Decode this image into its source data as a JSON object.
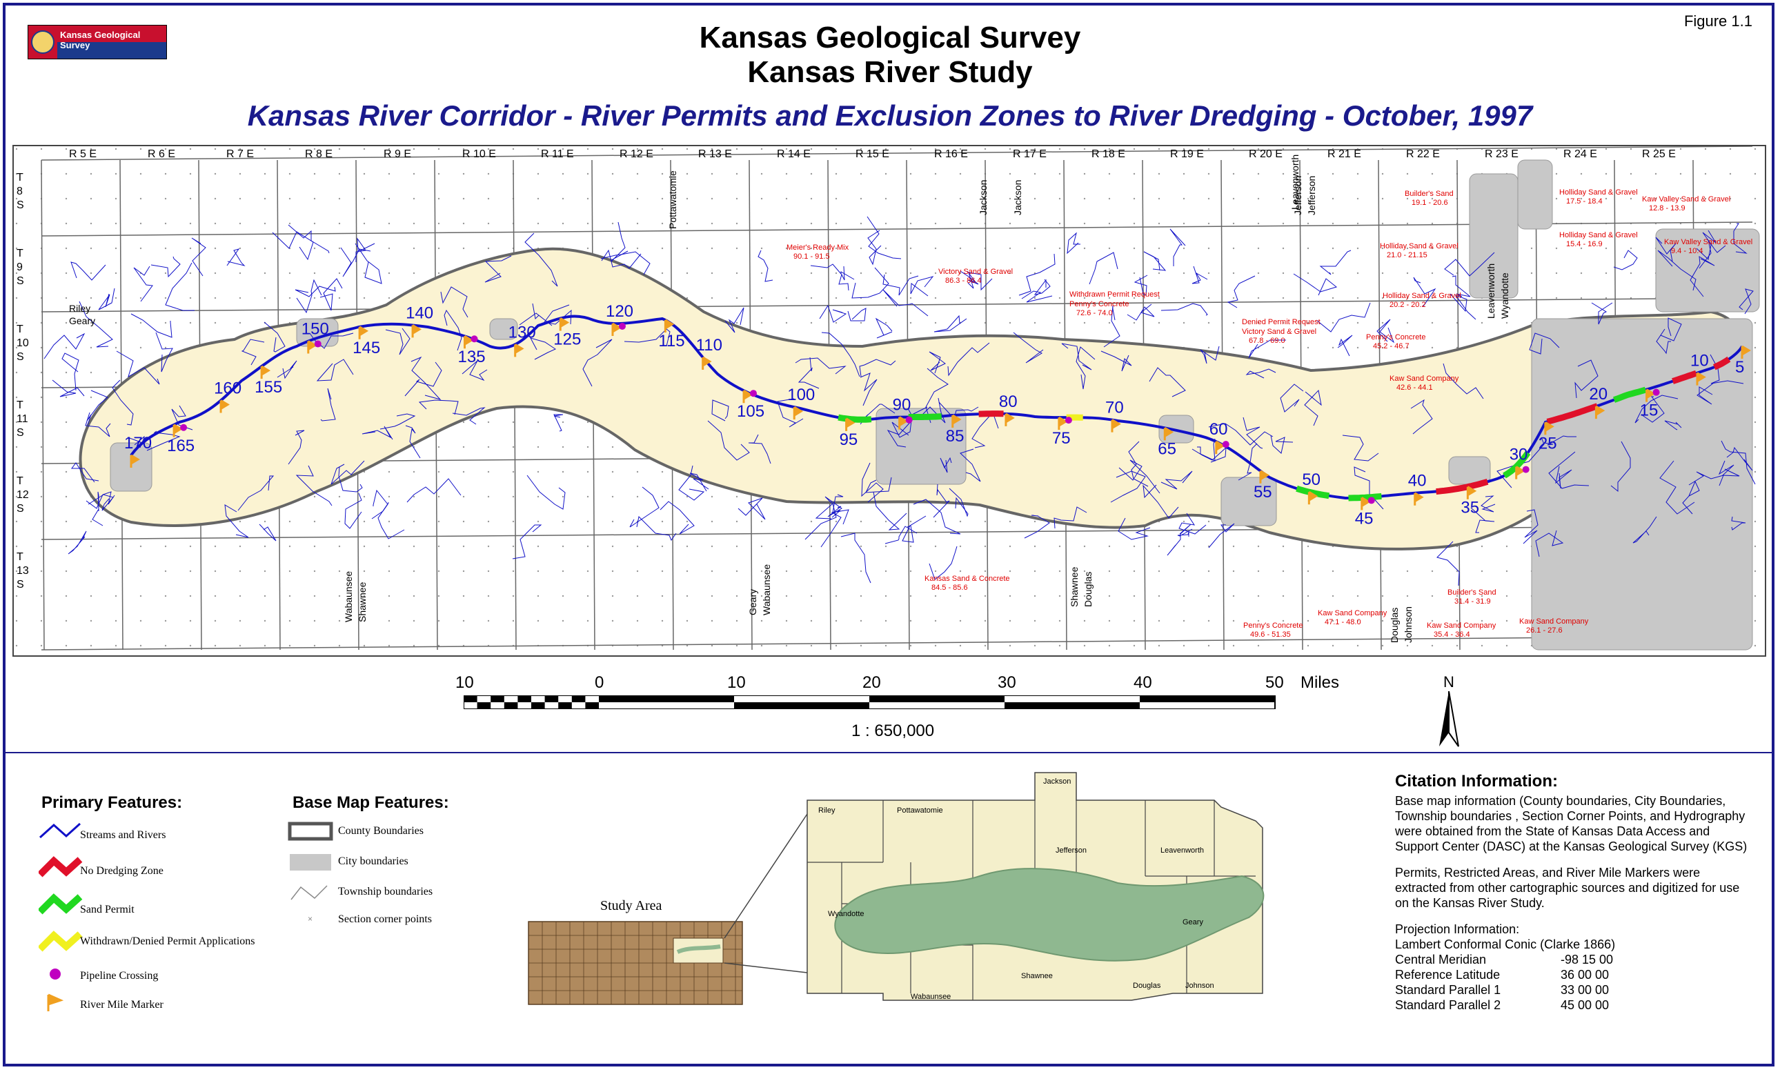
{
  "header": {
    "logo_text": "Kansas Geological Survey",
    "figure_label": "Figure  1.1",
    "title_line1": "Kansas Geological Survey",
    "title_line2": "Kansas River Study",
    "subtitle": "Kansas River Corridor - River Permits and Exclusion Zones to River Dredging - October, 1997"
  },
  "colors": {
    "frame": "#1a1a8c",
    "river": "#1010c8",
    "corridor_fill": "#fbf3d2",
    "city": "#c8c8c8",
    "no_dredge": "#e0102a",
    "sand_permit": "#20d820",
    "withdrawn": "#f0f020",
    "pipeline": "#c000c0",
    "marker": "#f0a020",
    "label_red": "#e00000",
    "study_area": "#8fb890",
    "kansas_fill": "#b08a5e"
  },
  "map": {
    "ranges": [
      "R 5 E",
      "R 6 E",
      "R 7 E",
      "R 8 E",
      "R 9 E",
      "R 10 E",
      "R 11 E",
      "R 12 E",
      "R 13 E",
      "R 14 E",
      "R 15 E",
      "R 16 E",
      "R 17 E",
      "R 18 E",
      "R 19 E",
      "R 20 E",
      "R 21 E",
      "R 22 E",
      "R 23 E",
      "R 24 E",
      "R 25 E"
    ],
    "townships": [
      [
        "T",
        "8",
        "S"
      ],
      [
        "T",
        "9",
        "S"
      ],
      [
        "T",
        "10",
        "S"
      ],
      [
        "T",
        "11",
        "S"
      ],
      [
        "T",
        "12",
        "S"
      ],
      [
        "T",
        "13",
        "S"
      ]
    ],
    "river_miles": [
      "170",
      "165",
      "160",
      "155",
      "150",
      "145",
      "140",
      "135",
      "130",
      "125",
      "120",
      "115",
      "110",
      "105",
      "100",
      "95",
      "90",
      "85",
      "80",
      "75",
      "70",
      "65",
      "60",
      "55",
      "50",
      "45",
      "40",
      "35",
      "30",
      "25",
      "20",
      "15",
      "10",
      "5"
    ],
    "county_labels": [
      "Riley",
      "Geary",
      "Pottawatomie",
      "Jackson",
      "Jackson",
      "Jefferson",
      "Jefferson",
      "Leavenworth",
      "Wabaunsee",
      "Shawnee",
      "Geary",
      "Wabaunsee",
      "Shawnee",
      "Douglas",
      "Douglas",
      "Johnson",
      "Leavenworth",
      "Wyandotte"
    ],
    "permits": [
      {
        "name": "Meier's Ready Mix",
        "range": "90.1 - 91.5"
      },
      {
        "name": "Victory Sand & Gravel",
        "range": "86.3 - 86.4"
      },
      {
        "name": "Withdrawn Permit Request",
        "range": ""
      },
      {
        "name": "Penny's Concrete",
        "range": "72.6 - 74.0"
      },
      {
        "name": "Denied Permit Request",
        "range": ""
      },
      {
        "name": "Victory Sand & Gravel",
        "range": "67.8 - 69.0"
      },
      {
        "name": "Penny's Concrete",
        "range": "45.2 - 46.7"
      },
      {
        "name": "Kaw Sand Company",
        "range": "42.6 - 44.1"
      },
      {
        "name": "Builder's Sand",
        "range": "19.1 - 20.6"
      },
      {
        "name": "Holliday Sand & Gravel",
        "range": "17.5 - 18.4"
      },
      {
        "name": "Holliday Sand & Gravel",
        "range": "21.0 - 21.15"
      },
      {
        "name": "Holliday Sand & Gravel",
        "range": "15.4 - 16.9"
      },
      {
        "name": "Kaw Valley Sand & Gravel",
        "range": "12.8 - 13.9"
      },
      {
        "name": "Kaw Valley Sand & Gravel",
        "range": "9.4 - 10.4"
      },
      {
        "name": "Holliday Sand & Gravel",
        "range": "20.2 - 20.2"
      },
      {
        "name": "Kansas Sand & Concrete",
        "range": "84.5 - 85.6"
      },
      {
        "name": "Penny's Concrete",
        "range": "49.6 - 51.35"
      },
      {
        "name": "Kaw Sand Company",
        "range": "47.1 - 48.0"
      },
      {
        "name": "Builder's Sand",
        "range": "31.4 - 31.9"
      },
      {
        "name": "Kaw Sand Company",
        "range": "35.4 - 36.4"
      },
      {
        "name": "Kaw Sand Company",
        "range": "26.1 - 27.6"
      }
    ]
  },
  "scale": {
    "ticks": [
      "10",
      "0",
      "10",
      "20",
      "30",
      "40",
      "50"
    ],
    "unit": "Miles",
    "ratio": "1 : 650,000",
    "north": "N"
  },
  "legend": {
    "primary_title": "Primary Features:",
    "primary_items": [
      "Streams and Rivers",
      "No Dredging Zone",
      "Sand Permit",
      "Withdrawn/Denied Permit Applications",
      "Pipeline Crossing",
      "River Mile Marker"
    ],
    "base_title": "Base Map Features:",
    "base_items": [
      "County Boundaries",
      "City boundaries",
      "Township boundaries",
      "Section corner points"
    ]
  },
  "inset": {
    "study_area_label": "Study Area",
    "counties": [
      "Jackson",
      "Riley",
      "Pottawatomie",
      "Jefferson",
      "Leavenworth",
      "Geary",
      "Wyandotte",
      "Shawnee",
      "Douglas",
      "Johnson",
      "Wabaunsee"
    ]
  },
  "citation": {
    "title": "Citation Information:",
    "para1": "Base map information (County boundaries, City Boundaries, Township boundaries , Section Corner Points, and Hydrography were obtained from the State of Kansas Data Access and Support Center (DASC) at the Kansas Geological Survey (KGS)",
    "para2": "Permits, Restricted Areas, and River Mile Markers were extracted from other cartographic sources and digitized for use on the Kansas River Study.",
    "proj_header1": "Projection Information:",
    "proj_header2": "Lambert Conformal Conic (Clarke 1866)",
    "rows": [
      {
        "label": "Central Meridian",
        "value": "-98 15 00"
      },
      {
        "label": "Reference Latitude",
        "value": "36 00 00"
      },
      {
        "label": "Standard Parallel 1",
        "value": "33 00 00"
      },
      {
        "label": "Standard Parallel 2",
        "value": "45 00 00"
      }
    ]
  }
}
